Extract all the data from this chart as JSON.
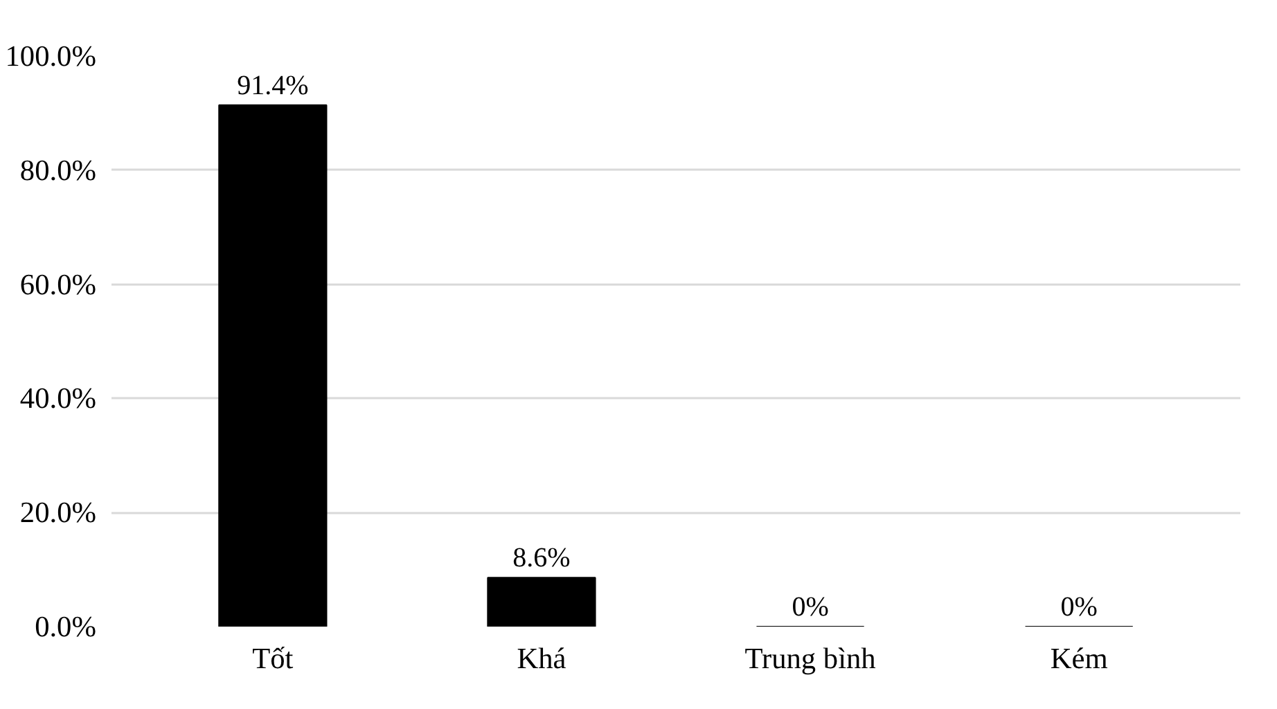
{
  "chart_data": {
    "type": "bar",
    "categories": [
      "Tốt",
      "Khá",
      "Trung bình",
      "Kém"
    ],
    "values": [
      91.4,
      8.6,
      0,
      0
    ],
    "value_labels": [
      "91.4%",
      "8.6%",
      "0%",
      "0%"
    ],
    "color": "#000000",
    "ylim": [
      0,
      100
    ],
    "yticks": [
      {
        "value": 0,
        "label": "0.0%"
      },
      {
        "value": 20,
        "label": "20.0%"
      },
      {
        "value": 40,
        "label": "40.0%"
      },
      {
        "value": 60,
        "label": "60.0%"
      },
      {
        "value": 80,
        "label": "80.0%"
      },
      {
        "value": 100,
        "label": "100.0%"
      }
    ],
    "grid": "y"
  }
}
